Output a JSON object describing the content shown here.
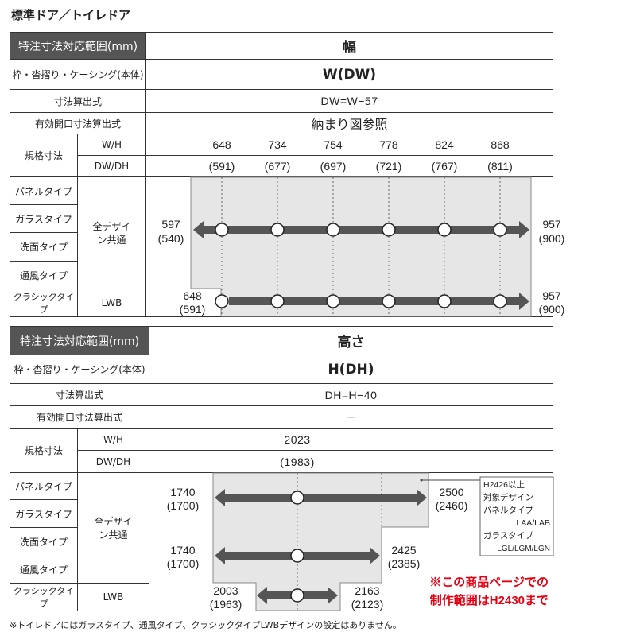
{
  "title": "標準ドア／トイレドア",
  "labels": {
    "range": "特注寸法対応範囲(mm)",
    "frame": "枠・沓摺り・ケーシング(本体)",
    "formula": "寸法算出式",
    "open_formula": "有効開口寸法算出式",
    "standard": "規格寸法",
    "wh": "W/H",
    "dwdh": "DW/DH",
    "types": [
      "パネルタイプ",
      "ガラスタイプ",
      "洗面タイプ",
      "通風タイプ",
      "クラシックタイプ"
    ],
    "all_design": "全デザイン共通",
    "lwb": "LWB"
  },
  "width": {
    "header": "幅",
    "frame": "W(DW)",
    "formula": "DW=W−57",
    "open_formula": "納まり図参照",
    "wh": [
      "648",
      "734",
      "754",
      "778",
      "824",
      "868"
    ],
    "dwdh": [
      "(591)",
      "(677)",
      "(697)",
      "(721)",
      "(767)",
      "(811)"
    ],
    "row1_min": "597",
    "row1_min_dw": "(540)",
    "row1_max": "957",
    "row1_max_dw": "(900)",
    "row2_min": "648",
    "row2_min_dw": "(591)",
    "row2_max": "957",
    "row2_max_dw": "(900)"
  },
  "height": {
    "header": "高さ",
    "frame": "H(DH)",
    "formula": "DH=H−40",
    "open_formula": "−",
    "wh": "2023",
    "dwdh": "(1983)",
    "row1_min": "1740",
    "row1_min_dh": "(1700)",
    "row1_max": "2500",
    "row1_max_dh": "(2460)",
    "row2_min": "1740",
    "row2_min_dh": "(1700)",
    "row2_max": "2425",
    "row2_max_dh": "(2385)",
    "row3_min": "2003",
    "row3_min_dh": "(1963)",
    "row3_max": "2163",
    "row3_max_dh": "(2123)",
    "note_lines": [
      "H2426以上",
      "対象デザイン",
      "パネルタイプ",
      "LAA/LAB",
      "ガラスタイプ",
      "LGL/LGM/LGN"
    ],
    "red_note_1": "※この商品ページでの",
    "red_note_2": "制作範囲はH2430まで"
  },
  "colors": {
    "header_bg": "#555555",
    "region": "#e6e6e6",
    "arrow": "#555555",
    "red": "#e60012"
  },
  "footnote": "※トイレドアにはガラスタイプ、通風タイプ、クラシックタイプLWBデザインの設定はありません。"
}
